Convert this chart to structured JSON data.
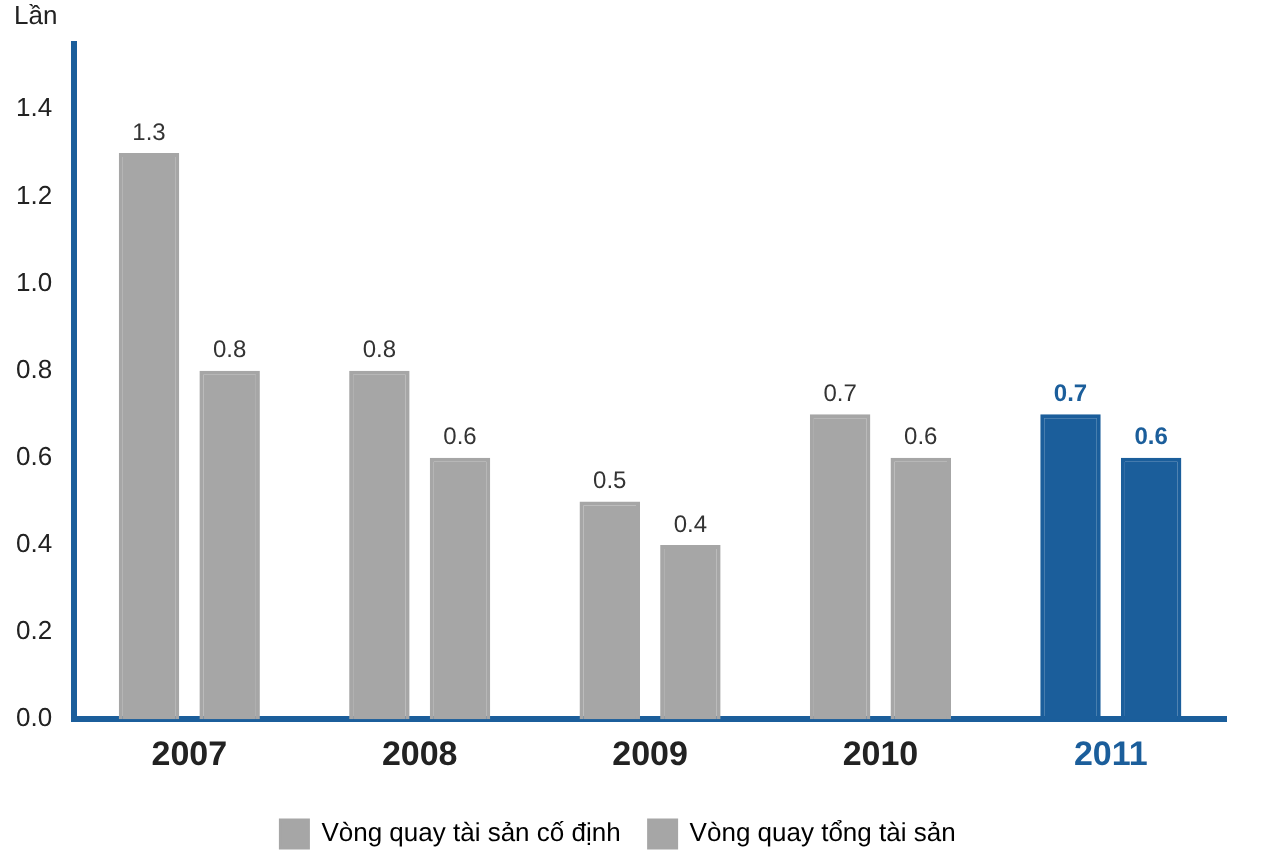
{
  "chart_data": {
    "type": "bar",
    "ylabel": "Lần",
    "categories": [
      "2007",
      "2008",
      "2009",
      "2010",
      "2011"
    ],
    "series": [
      {
        "name": "Vòng quay tài sản cố định",
        "color": "#a6a6a6",
        "colors": [
          "#a6a6a6",
          "#a6a6a6",
          "#a6a6a6",
          "#a6a6a6",
          "#1b5e9b"
        ],
        "values": [
          1.3,
          0.8,
          0.5,
          0.7,
          0.7
        ]
      },
      {
        "name": "Vòng quay tổng tài sản",
        "color": "#a6a6a6",
        "colors": [
          "#a6a6a6",
          "#a6a6a6",
          "#a6a6a6",
          "#a6a6a6",
          "#1b5e9b"
        ],
        "values": [
          0.8,
          0.6,
          0.4,
          0.6,
          0.6
        ]
      }
    ],
    "ylim": [
      0,
      1.55
    ],
    "yticks": [
      {
        "value": 0,
        "label": "0.0"
      },
      {
        "value": 0.2,
        "label": "0.2"
      },
      {
        "value": 0.4,
        "label": "0.4"
      },
      {
        "value": 0.6,
        "label": "0.6"
      },
      {
        "value": 0.8,
        "label": "0.8"
      },
      {
        "value": 1,
        "label": "1.0"
      },
      {
        "value": 1.2,
        "label": "1.2"
      },
      {
        "value": 1.4,
        "label": "1.4"
      }
    ],
    "grid": false,
    "legend": "bottom",
    "data_labels": true
  }
}
